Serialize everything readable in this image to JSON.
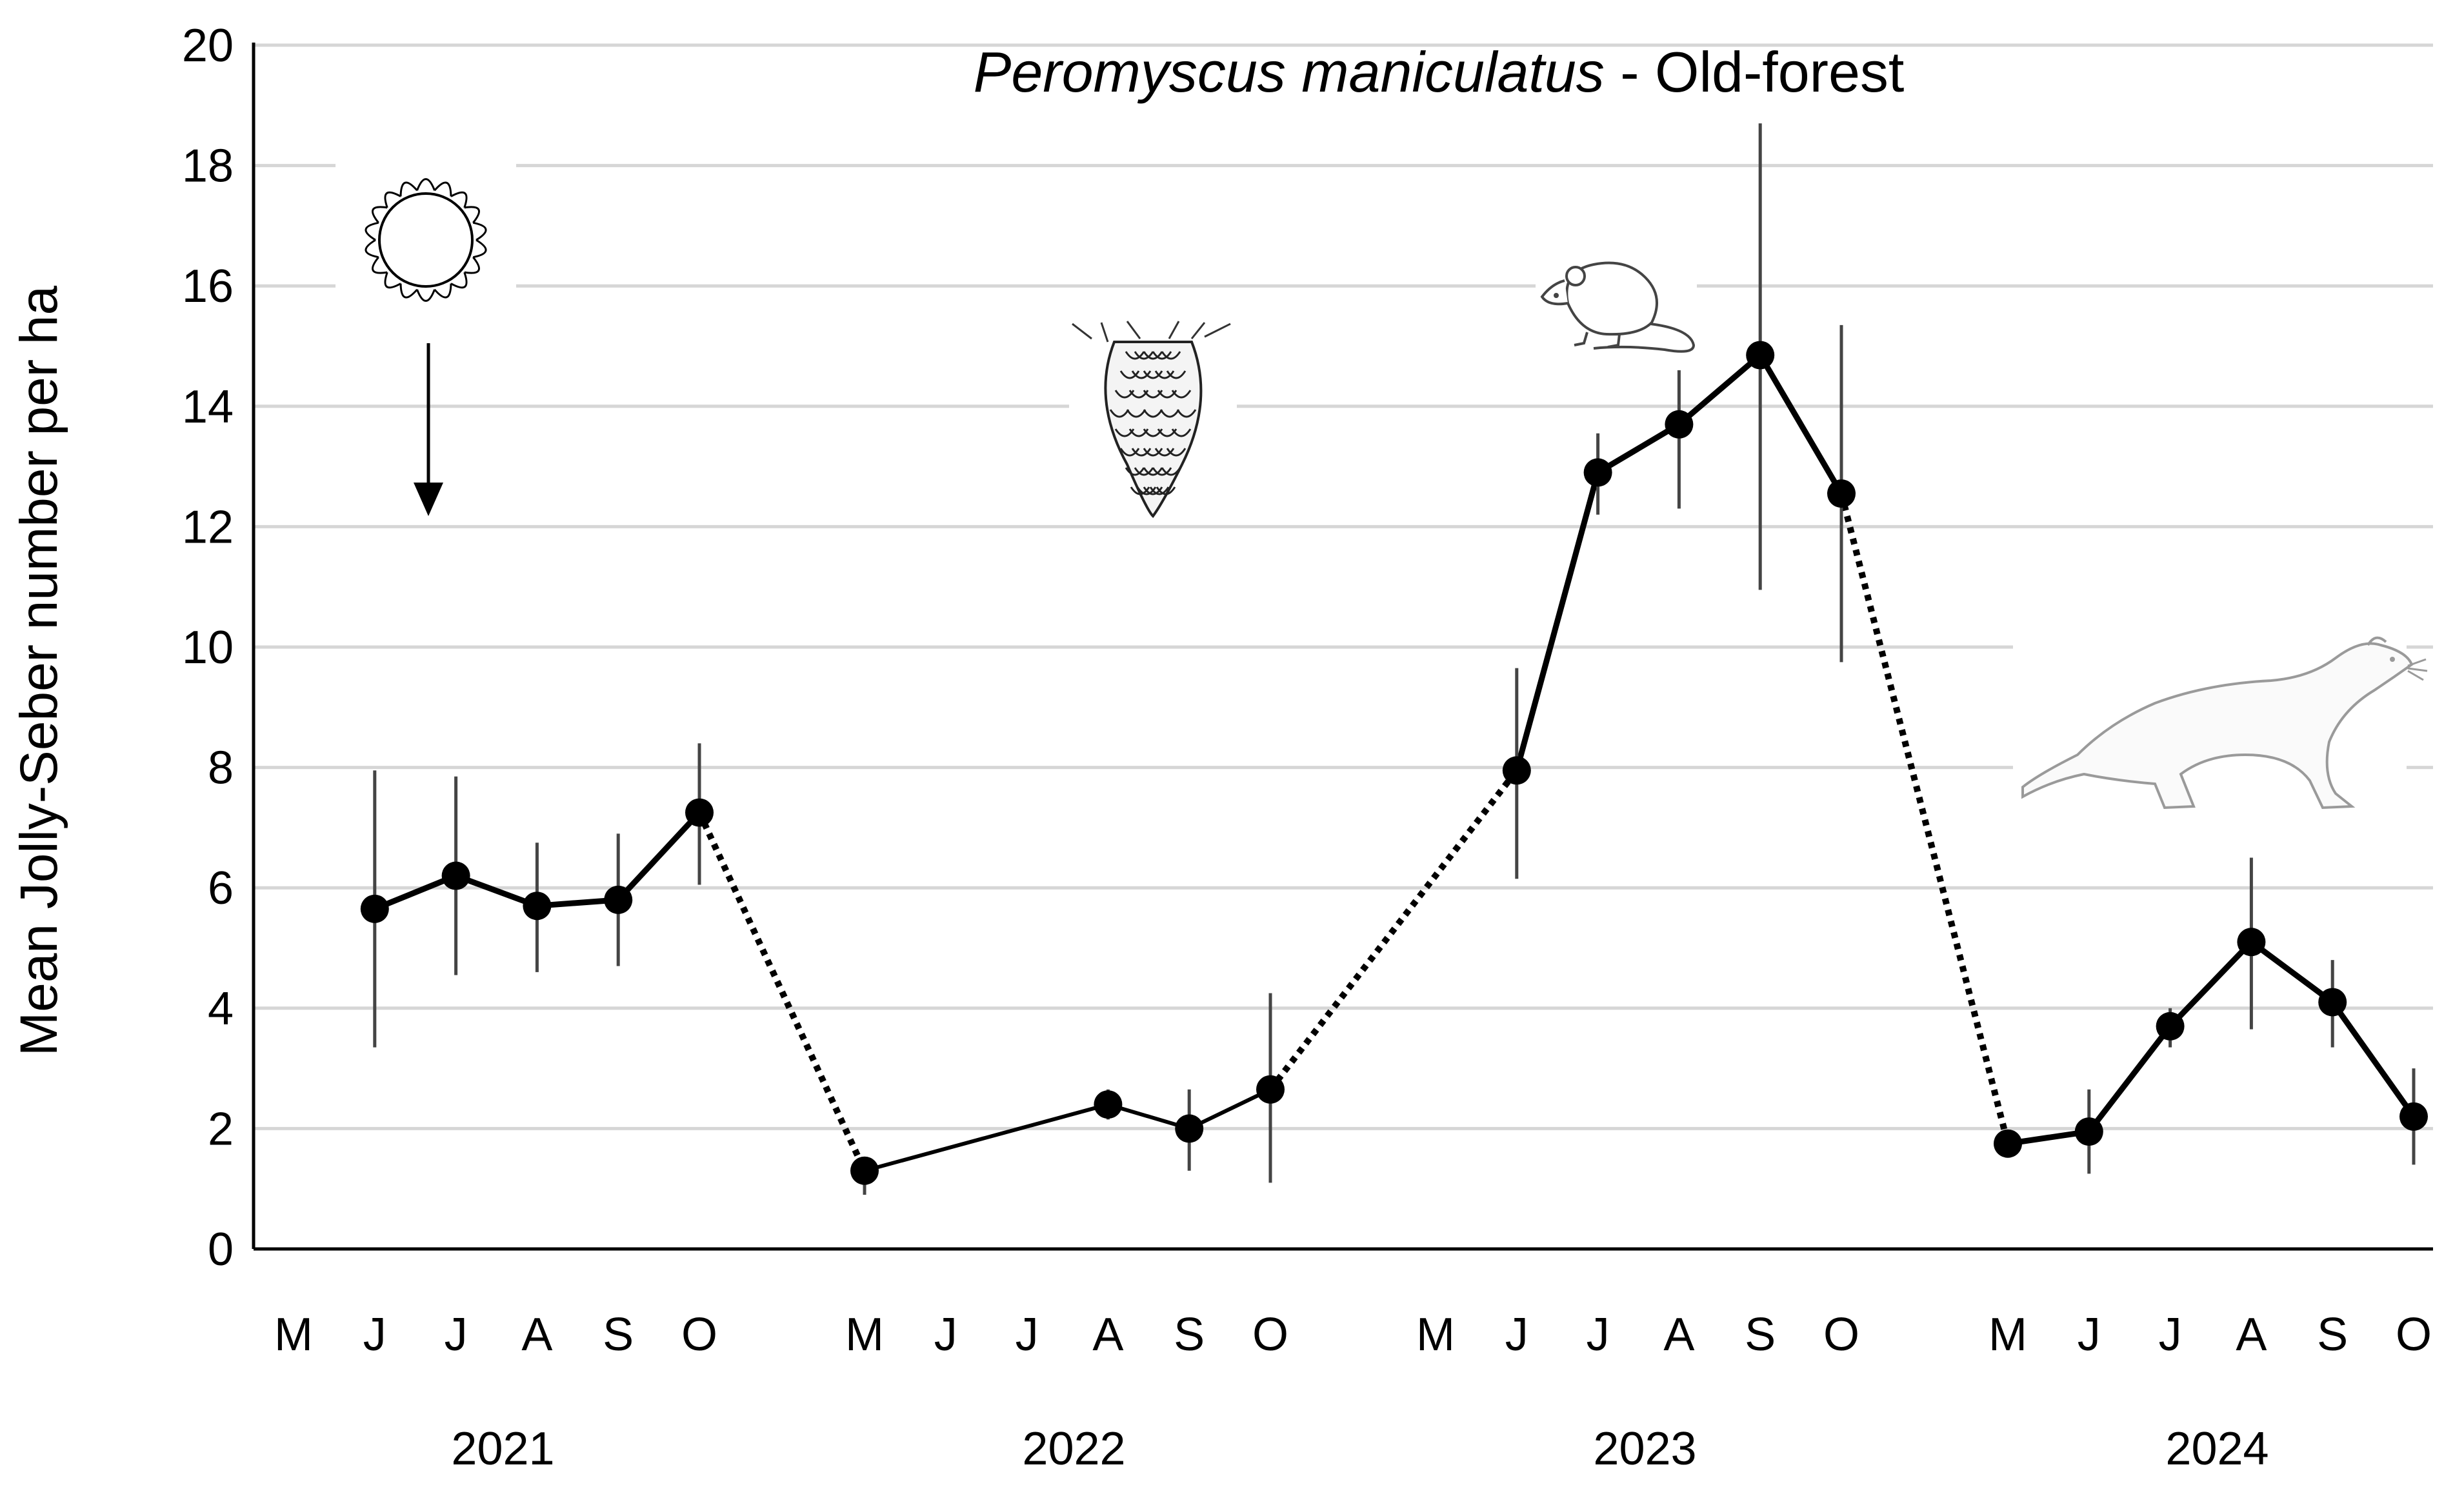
{
  "chart_data": {
    "type": "line",
    "title": {
      "italic": "Peromyscus maniculatus",
      "rest": " - Old-forest"
    },
    "xlabel": "",
    "ylabel": "Mean Jolly-Seber number per ha",
    "ylim": [
      0,
      20
    ],
    "yticks": [
      0,
      2,
      4,
      6,
      8,
      10,
      12,
      14,
      16,
      18,
      20
    ],
    "grid": true,
    "month_labels": [
      "M",
      "J",
      "J",
      "A",
      "S",
      "O"
    ],
    "years": [
      "2021",
      "2022",
      "2023",
      "2024"
    ],
    "series": [
      {
        "year": "2021",
        "points": [
          {
            "month": "J",
            "value": 5.65,
            "err_low": 3.35,
            "err_high": 7.95
          },
          {
            "month": "J",
            "value": 6.2,
            "err_low": 4.55,
            "err_high": 7.85
          },
          {
            "month": "A",
            "value": 5.7,
            "err_low": 4.6,
            "err_high": 6.75
          },
          {
            "month": "S",
            "value": 5.8,
            "err_low": 4.7,
            "err_high": 6.9
          },
          {
            "month": "O",
            "value": 7.25,
            "err_low": 6.05,
            "err_high": 8.4
          }
        ]
      },
      {
        "year": "2022",
        "points": [
          {
            "month": "M",
            "value": 1.3,
            "err_low": 0.9,
            "err_high": 1.45
          },
          {
            "month": "A",
            "value": 2.4,
            "err_low": 2.15,
            "err_high": 2.65
          },
          {
            "month": "S",
            "value": 2.0,
            "err_low": 1.3,
            "err_high": 2.65
          },
          {
            "month": "O",
            "value": 2.65,
            "err_low": 1.1,
            "err_high": 4.25
          }
        ]
      },
      {
        "year": "2023",
        "points": [
          {
            "month": "J",
            "value": 7.95,
            "err_low": 6.15,
            "err_high": 9.65
          },
          {
            "month": "J",
            "value": 12.9,
            "err_low": 12.2,
            "err_high": 13.55
          },
          {
            "month": "A",
            "value": 13.7,
            "err_low": 12.3,
            "err_high": 14.6
          },
          {
            "month": "S",
            "value": 14.85,
            "err_low": 10.95,
            "err_high": 18.7
          },
          {
            "month": "O",
            "value": 12.55,
            "err_low": 9.75,
            "err_high": 15.35
          }
        ]
      },
      {
        "year": "2024",
        "points": [
          {
            "month": "M",
            "value": 1.75,
            "err_low": 1.6,
            "err_high": 1.9
          },
          {
            "month": "J",
            "value": 1.95,
            "err_low": 1.25,
            "err_high": 2.65
          },
          {
            "month": "J",
            "value": 3.7,
            "err_low": 3.35,
            "err_high": 4.0
          },
          {
            "month": "A",
            "value": 5.1,
            "err_low": 3.65,
            "err_high": 6.5
          },
          {
            "month": "S",
            "value": 4.1,
            "err_low": 3.35,
            "err_high": 4.8
          },
          {
            "month": "O",
            "value": 2.2,
            "err_low": 1.4,
            "err_high": 3.0
          }
        ]
      }
    ],
    "dotted_links": [
      "2021-O to 2022-M",
      "2022-O to 2023-J",
      "2023-O to 2024-M"
    ],
    "icons": [
      "sun-icon",
      "arrow-down-icon",
      "pine-cone-icon",
      "mouse-icon",
      "weasel-icon"
    ]
  }
}
